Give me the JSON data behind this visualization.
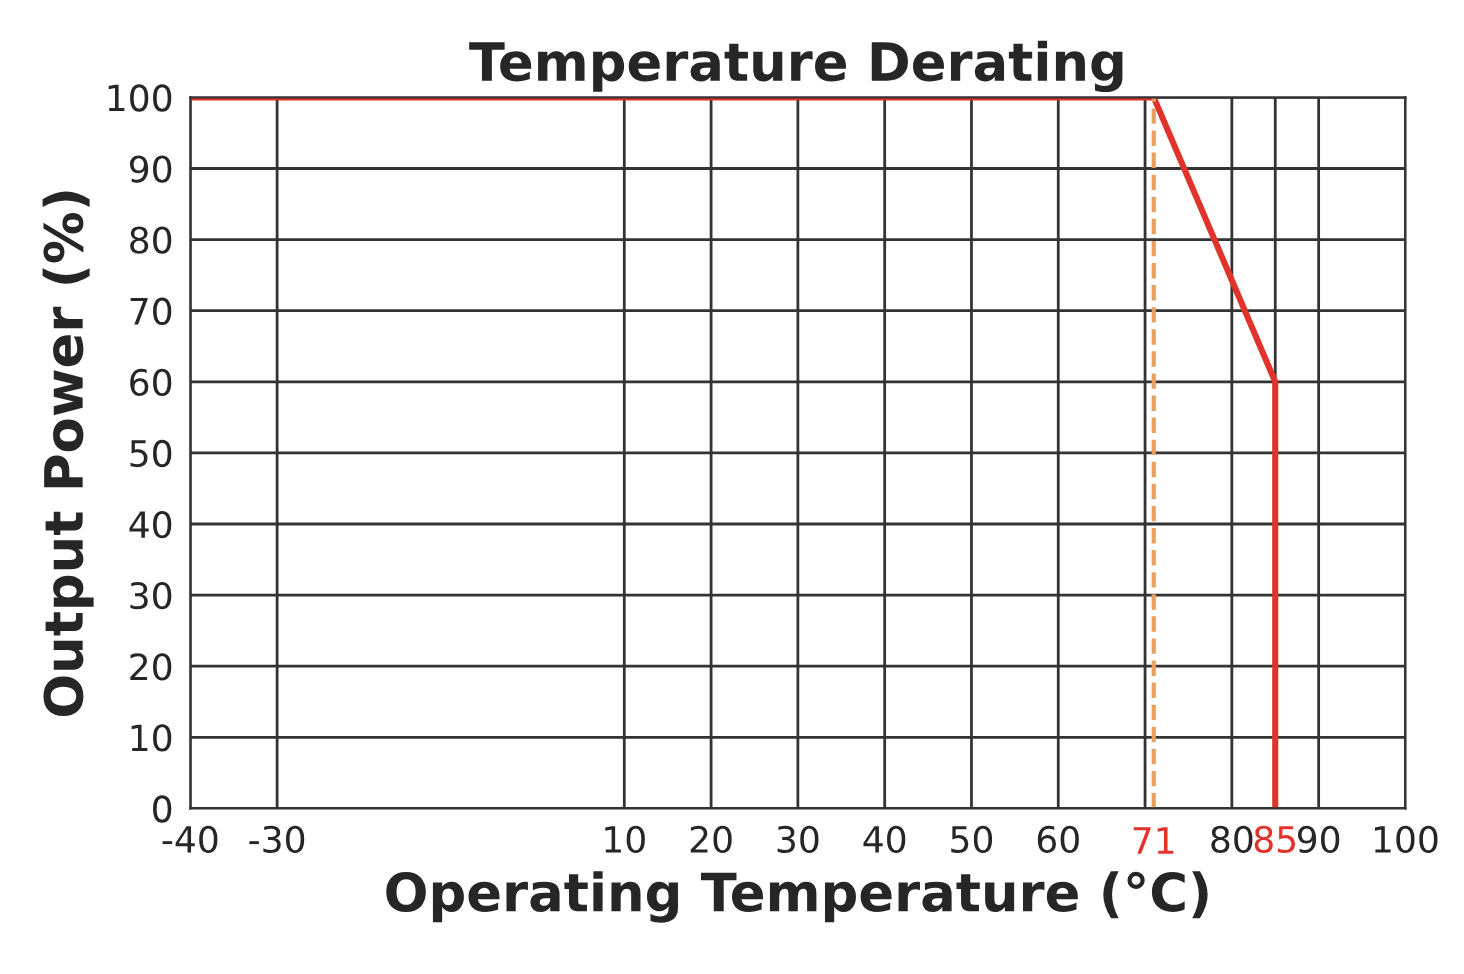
{
  "chart_data": {
    "type": "line",
    "title": "Temperature Derating",
    "xlabel": "Operating Temperature (°C)",
    "ylabel": "Output Power (%)",
    "series": [
      {
        "color": "#e0332b",
        "x": [
          -40,
          71,
          85,
          85
        ],
        "values": [
          100,
          100,
          60,
          0
        ]
      }
    ],
    "xlim": [
      -40,
      100
    ],
    "xticks": [
      -40,
      -30,
      10,
      20,
      30,
      40,
      50,
      60,
      {
        "value": 70,
        "label": null
      },
      80,
      85,
      90,
      100
    ],
    "ylim": [
      0,
      100
    ],
    "yticks": [
      0,
      10,
      20,
      30,
      40,
      50,
      60,
      70,
      80,
      90,
      100
    ],
    "ref_lines": [
      {
        "axis": "x",
        "value": 71,
        "label": "71",
        "color": "#e8a060",
        "line_style": "dashed"
      }
    ],
    "grid": true,
    "marker": "none",
    "line_style": "solid",
    "legend": false
  }
}
